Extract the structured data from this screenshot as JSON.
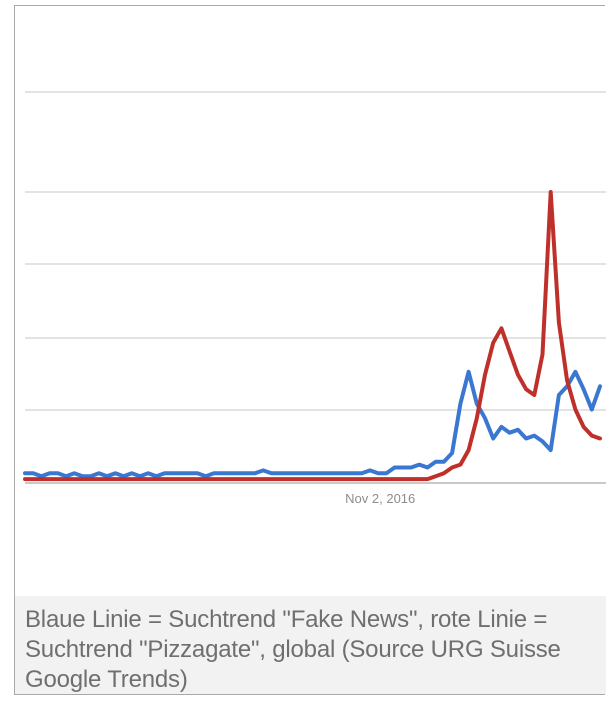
{
  "caption": "Blaue Linie = Suchtrend \"Fake News\", rote Linie = Suchtrend \"Pizzagate\", global (Source URG Suisse Google Trends)",
  "chart_data": {
    "type": "line",
    "title": "",
    "xlabel": "",
    "ylabel": "",
    "ylim": [
      0,
      100
    ],
    "grid": true,
    "x_tick_label": "Nov 2, 2016",
    "x_tick_index": 43,
    "series": [
      {
        "color": "#3a77d1",
        "values": [
          3,
          3,
          2,
          3,
          3,
          2,
          3,
          2,
          2,
          3,
          2,
          3,
          2,
          3,
          2,
          3,
          2,
          3,
          3,
          3,
          3,
          3,
          2,
          3,
          3,
          3,
          3,
          3,
          3,
          4,
          3,
          3,
          3,
          3,
          3,
          3,
          3,
          3,
          3,
          3,
          3,
          3,
          4,
          3,
          3,
          5,
          5,
          5,
          6,
          5,
          7,
          7,
          10,
          27,
          38,
          27,
          22,
          15,
          19,
          17,
          18,
          15,
          16,
          14,
          11,
          30,
          33,
          38,
          32,
          25,
          33
        ]
      },
      {
        "color": "#c0302a",
        "values": [
          1,
          1,
          1,
          1,
          1,
          1,
          1,
          1,
          1,
          1,
          1,
          1,
          1,
          1,
          1,
          1,
          1,
          1,
          1,
          1,
          1,
          1,
          1,
          1,
          1,
          1,
          1,
          1,
          1,
          1,
          1,
          1,
          1,
          1,
          1,
          1,
          1,
          1,
          1,
          1,
          1,
          1,
          1,
          1,
          1,
          1,
          1,
          1,
          1,
          1,
          2,
          3,
          5,
          6,
          11,
          22,
          37,
          48,
          53,
          45,
          37,
          32,
          30,
          44,
          100,
          55,
          35,
          25,
          19,
          16,
          15
        ]
      }
    ]
  },
  "colors": {
    "grid": "#e3e3e3",
    "axis": "#c9c9c9",
    "tick_text": "#8c8c8c",
    "caption_bg": "#f2f2f2",
    "caption_text": "#6f6f6f"
  }
}
